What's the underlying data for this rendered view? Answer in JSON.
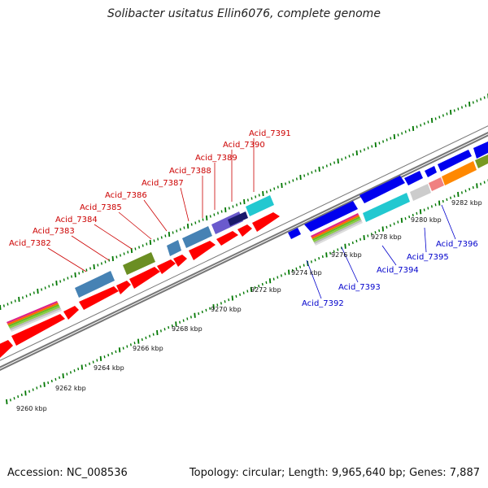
{
  "title": "Solibacter usitatus Ellin6076, complete genome",
  "footer": {
    "accession": "Accession: NC_008536",
    "summary": "Topology: circular; Length: 9,965,640 bp; Genes: 7,887"
  },
  "scale_labels": [
    "9260 kbp",
    "9262 kbp",
    "9264 kbp",
    "9266 kbp",
    "9268 kbp",
    "9270 kbp",
    "9272 kbp",
    "9274 kbp",
    "9276 kbp",
    "9278 kbp",
    "9280 kbp",
    "9282 kbp"
  ],
  "genes_upper": [
    "Acid_7382",
    "Acid_7383",
    "Acid_7384",
    "Acid_7385",
    "Acid_7386",
    "Acid_7387",
    "Acid_7388",
    "Acid_7389",
    "Acid_7390",
    "Acid_7391"
  ],
  "genes_lower": [
    "Acid_7392",
    "Acid_7393",
    "Acid_7394",
    "Acid_7395",
    "Acid_7396"
  ],
  "colors": {
    "upper_label": "#cc0000",
    "lower_label": "#0000cc",
    "cds_forward": "#ff0000",
    "cds_reverse": "#0000ee",
    "tick": "#007700",
    "backbone": "#888888"
  }
}
